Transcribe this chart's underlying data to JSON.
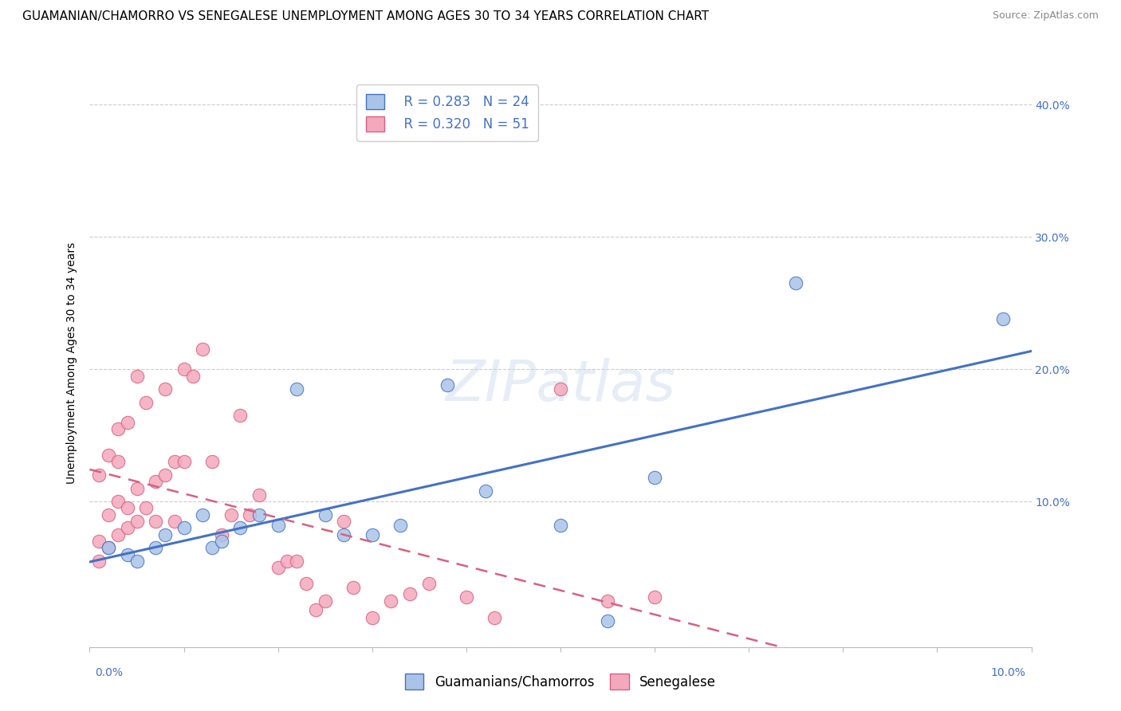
{
  "title": "GUAMANIAN/CHAMORRO VS SENEGALESE UNEMPLOYMENT AMONG AGES 30 TO 34 YEARS CORRELATION CHART",
  "source": "Source: ZipAtlas.com",
  "ylabel": "Unemployment Among Ages 30 to 34 years",
  "ytick_labels": [
    "10.0%",
    "20.0%",
    "30.0%",
    "40.0%"
  ],
  "ytick_vals": [
    0.1,
    0.2,
    0.3,
    0.4
  ],
  "xlim": [
    0.0,
    0.1
  ],
  "ylim": [
    -0.01,
    0.42
  ],
  "watermark": "ZIPatlas",
  "guamanian_R": 0.283,
  "guamanian_N": 24,
  "senegalese_R": 0.32,
  "senegalese_N": 51,
  "guamanian_color": "#aac4e8",
  "senegalese_color": "#f4a8bc",
  "guamanian_line_color": "#4472c4",
  "senegalese_line_color": "#d96080",
  "guamanian_x": [
    0.002,
    0.004,
    0.005,
    0.007,
    0.008,
    0.01,
    0.012,
    0.013,
    0.014,
    0.016,
    0.018,
    0.02,
    0.022,
    0.025,
    0.027,
    0.03,
    0.033,
    0.038,
    0.042,
    0.05,
    0.055,
    0.06,
    0.075,
    0.097
  ],
  "guamanian_y": [
    0.065,
    0.06,
    0.055,
    0.065,
    0.075,
    0.08,
    0.09,
    0.065,
    0.07,
    0.08,
    0.09,
    0.082,
    0.185,
    0.09,
    0.075,
    0.075,
    0.082,
    0.188,
    0.108,
    0.082,
    0.01,
    0.118,
    0.265,
    0.238
  ],
  "senegalese_x": [
    0.001,
    0.001,
    0.001,
    0.002,
    0.002,
    0.002,
    0.003,
    0.003,
    0.003,
    0.003,
    0.004,
    0.004,
    0.004,
    0.005,
    0.005,
    0.005,
    0.006,
    0.006,
    0.007,
    0.007,
    0.008,
    0.008,
    0.009,
    0.009,
    0.01,
    0.01,
    0.011,
    0.012,
    0.013,
    0.014,
    0.015,
    0.016,
    0.017,
    0.018,
    0.02,
    0.021,
    0.022,
    0.023,
    0.024,
    0.025,
    0.027,
    0.028,
    0.03,
    0.032,
    0.034,
    0.036,
    0.04,
    0.043,
    0.05,
    0.055,
    0.06
  ],
  "senegalese_y": [
    0.055,
    0.07,
    0.12,
    0.065,
    0.09,
    0.135,
    0.075,
    0.1,
    0.13,
    0.155,
    0.08,
    0.095,
    0.16,
    0.085,
    0.11,
    0.195,
    0.095,
    0.175,
    0.085,
    0.115,
    0.12,
    0.185,
    0.085,
    0.13,
    0.13,
    0.2,
    0.195,
    0.215,
    0.13,
    0.075,
    0.09,
    0.165,
    0.09,
    0.105,
    0.05,
    0.055,
    0.055,
    0.038,
    0.018,
    0.025,
    0.085,
    0.035,
    0.012,
    0.025,
    0.03,
    0.038,
    0.028,
    0.012,
    0.185,
    0.025,
    0.028
  ],
  "title_fontsize": 11,
  "source_fontsize": 9,
  "axis_label_fontsize": 10,
  "tick_fontsize": 10,
  "legend_fontsize": 12
}
